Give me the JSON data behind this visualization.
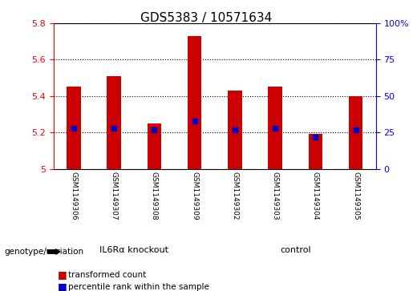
{
  "title": "GDS5383 / 10571634",
  "samples": [
    "GSM1149306",
    "GSM1149307",
    "GSM1149308",
    "GSM1149309",
    "GSM1149302",
    "GSM1149303",
    "GSM1149304",
    "GSM1149305"
  ],
  "transformed_counts": [
    5.45,
    5.51,
    5.25,
    5.73,
    5.43,
    5.45,
    5.19,
    5.4
  ],
  "percentile_ranks": [
    28,
    28,
    27,
    33,
    27,
    28,
    22,
    27
  ],
  "ylim": [
    5.0,
    5.8
  ],
  "yticks": [
    5.0,
    5.2,
    5.4,
    5.6,
    5.8
  ],
  "ytick_labels": [
    "5",
    "5.2",
    "5.4",
    "5.6",
    "5.8"
  ],
  "percentile_ylim": [
    0,
    100
  ],
  "percentile_yticks": [
    0,
    25,
    50,
    75,
    100
  ],
  "percentile_ytick_labels": [
    "0",
    "25",
    "50",
    "75",
    "100%"
  ],
  "groups": [
    {
      "label": "IL6Rα knockout",
      "start": 0,
      "end": 4,
      "color": "#66dd66"
    },
    {
      "label": "control",
      "start": 4,
      "end": 8,
      "color": "#66dd66"
    }
  ],
  "bar_color": "#cc0000",
  "dot_color": "#0000cc",
  "plot_bg_color": "#ffffff",
  "sample_box_color": "#d0d0d0",
  "title_fontsize": 11,
  "tick_fontsize": 8,
  "label_fontsize": 8
}
